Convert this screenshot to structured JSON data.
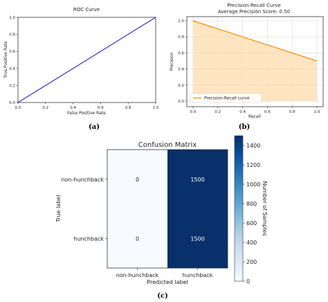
{
  "chart_data": [
    {
      "type": "line",
      "title": "ROC Curve",
      "xlabel": "False Positive Rate",
      "ylabel": "True Positive Rate",
      "xlim": [
        0,
        1
      ],
      "ylim": [
        0,
        1
      ],
      "xticks": [
        "0.0",
        "0.2",
        "0.4",
        "0.6",
        "0.8",
        "1.0"
      ],
      "yticks": [
        "0.0",
        "0.2",
        "0.4",
        "0.6",
        "0.8",
        "1.0"
      ],
      "grid": false,
      "series": [
        {
          "x": [
            0,
            1
          ],
          "y": [
            0,
            1
          ],
          "color": "#3030c0"
        }
      ]
    },
    {
      "type": "area",
      "title": "Precision-Recall Curve",
      "subtitle": "Average Precision Score: 0.50",
      "xlabel": "Recall",
      "ylabel": "Precision",
      "xlim": [
        0,
        1
      ],
      "ylim": [
        0,
        1
      ],
      "xticks": [
        "0.0",
        "0.2",
        "0.4",
        "0.6",
        "0.8",
        "1.0"
      ],
      "yticks": [
        "0.0",
        "0.2",
        "0.4",
        "0.6",
        "0.8",
        "1.0"
      ],
      "grid": true,
      "legend": "lower-left",
      "series": [
        {
          "name": "Precision-Recall curve",
          "x": [
            0,
            1
          ],
          "y": [
            1.0,
            0.5
          ],
          "color": "#ff8c00",
          "fill": "#fddcae"
        }
      ]
    },
    {
      "type": "heatmap",
      "title": "Confusion Matrix",
      "xlabel": "Predicted label",
      "ylabel": "True label",
      "x_categories": [
        "non-hunchback",
        "hunchback"
      ],
      "y_categories": [
        "non-hunchback",
        "hunchback"
      ],
      "values": [
        [
          0,
          1500
        ],
        [
          0,
          1500
        ]
      ],
      "colorbar": {
        "label": "Number of Samples",
        "range": [
          0,
          1500
        ],
        "ticks": [
          "0",
          "200",
          "400",
          "600",
          "800",
          "1000",
          "1200",
          "1400"
        ],
        "low_color": "#f7fbff",
        "high_color": "#08306b"
      }
    }
  ],
  "subfigure_labels": {
    "a": "(a)",
    "b": "(b)",
    "c": "(c)"
  }
}
